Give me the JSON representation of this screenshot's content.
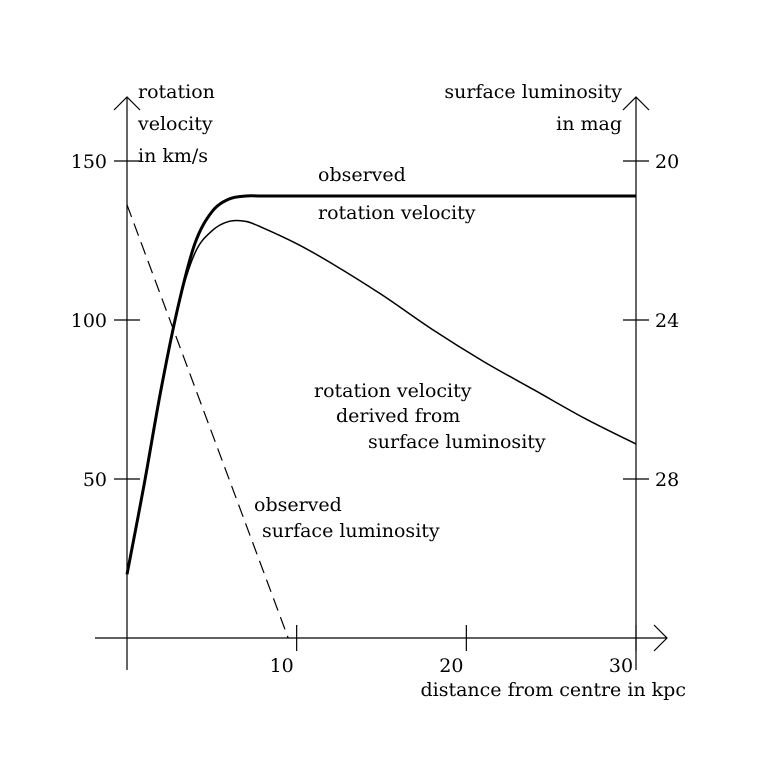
{
  "chart_data": {
    "type": "line",
    "xlabel": "distance from centre in kpc",
    "x_ticks": [
      10,
      20,
      30
    ],
    "xlim": [
      0,
      30
    ],
    "left_axis": {
      "label_lines": [
        "rotation",
        "velocity",
        "in km/s"
      ],
      "ticks": [
        50,
        100,
        150
      ],
      "ylim": [
        0,
        150
      ]
    },
    "right_axis": {
      "label_lines": [
        "surface luminosity",
        "in mag"
      ],
      "ticks": [
        20,
        24,
        28
      ],
      "ylim": [
        20,
        32
      ]
    },
    "series": [
      {
        "name": "observed rotation velocity",
        "label_lines": [
          "observed",
          "rotation velocity"
        ],
        "axis": "left",
        "style": "thick",
        "x": [
          0,
          1,
          2,
          3,
          4,
          5,
          6,
          7,
          8,
          10,
          15,
          20,
          25,
          30
        ],
        "y": [
          20,
          48,
          78,
          104,
          124,
          134,
          138,
          139,
          139,
          139,
          139,
          139,
          139,
          139
        ]
      },
      {
        "name": "rotation velocity derived from surface luminosity",
        "label_lines": [
          "rotation velocity",
          "derived from",
          "surface luminosity"
        ],
        "axis": "left",
        "style": "thin",
        "x": [
          0,
          1,
          2,
          3,
          4,
          5,
          6,
          7,
          8,
          10,
          12,
          15,
          18,
          21,
          24,
          27,
          30
        ],
        "y": [
          20,
          48,
          78,
          104,
          121,
          128,
          131,
          131,
          129,
          124,
          118,
          108,
          97,
          87,
          78,
          69,
          61
        ]
      },
      {
        "name": "observed surface luminosity",
        "label_lines": [
          "observed",
          "surface luminosity"
        ],
        "axis": "right",
        "style": "dashed",
        "x": [
          0,
          9.5
        ],
        "y": [
          21.1,
          32
        ]
      }
    ]
  }
}
